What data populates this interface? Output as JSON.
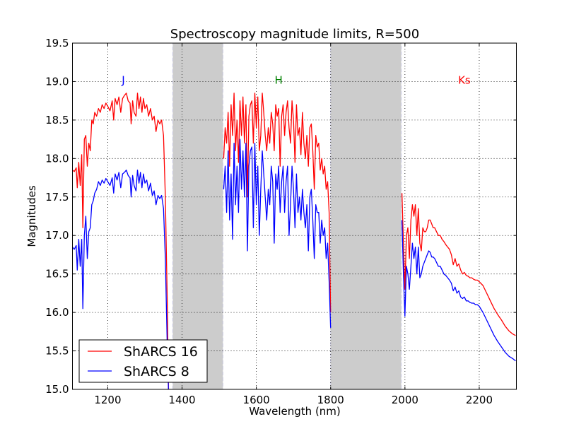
{
  "chart_data": {
    "type": "line",
    "title": "Spectroscopy magnitude limits, R=500",
    "xlabel": "Wavelength (nm)",
    "ylabel": "Magnitudes",
    "xlim": [
      1105,
      2300
    ],
    "ylim": [
      15.0,
      19.5
    ],
    "xticks": [
      1200,
      1400,
      1600,
      1800,
      2000,
      2200
    ],
    "xtick_labels": [
      "1200",
      "1400",
      "1600",
      "1800",
      "2000",
      "2200"
    ],
    "yticks": [
      15.0,
      15.5,
      16.0,
      16.5,
      17.0,
      17.5,
      18.0,
      18.5,
      19.0,
      19.5
    ],
    "ytick_labels": [
      "15.0",
      "15.5",
      "16.0",
      "16.5",
      "17.0",
      "17.5",
      "18.0",
      "18.5",
      "19.0",
      "19.5"
    ],
    "grid": true,
    "legend_position": "lower-left",
    "shaded_bands": [
      [
        1375,
        1510
      ],
      [
        1800,
        1990
      ]
    ],
    "band_color": "#cccccc",
    "annotations": [
      {
        "text": "J",
        "x": 1242,
        "y": 19.02,
        "color": "#0000ff"
      },
      {
        "text": "H",
        "x": 1660,
        "y": 19.02,
        "color": "#008000"
      },
      {
        "text": "Ks",
        "x": 2160,
        "y": 19.02,
        "color": "#ff0000"
      }
    ],
    "series": [
      {
        "name": "ShARCS 16",
        "color": "#ff0000",
        "segments": [
          {
            "x": [
              1105,
              1110,
              1115,
              1118,
              1122,
              1126,
              1130,
              1133,
              1137,
              1141,
              1145,
              1149,
              1153,
              1157,
              1161,
              1165,
              1170,
              1175,
              1180,
              1185,
              1190,
              1195,
              1200,
              1206,
              1212,
              1216,
              1220,
              1225,
              1230,
              1235,
              1240,
              1245,
              1250,
              1255,
              1260,
              1263,
              1267,
              1271,
              1276,
              1280,
              1284,
              1288,
              1292,
              1296,
              1300,
              1305,
              1310,
              1315,
              1320,
              1325,
              1330,
              1335,
              1340,
              1345,
              1350,
              1355,
              1360,
              1364
            ],
            "y": [
              17.85,
              17.83,
              17.88,
              17.62,
              17.95,
              17.65,
              18.05,
              17.1,
              18.25,
              18.3,
              17.9,
              18.2,
              18.1,
              18.5,
              18.45,
              18.6,
              18.55,
              18.65,
              18.6,
              18.7,
              18.65,
              18.72,
              18.68,
              18.62,
              18.75,
              18.5,
              18.78,
              18.7,
              18.8,
              18.6,
              18.78,
              18.82,
              18.85,
              18.75,
              18.72,
              18.45,
              18.75,
              18.6,
              18.55,
              18.85,
              18.65,
              18.8,
              18.6,
              18.78,
              18.65,
              18.7,
              18.55,
              18.65,
              18.5,
              18.55,
              18.35,
              18.5,
              18.45,
              18.5,
              18.3,
              17.5,
              16.2,
              14.9
            ]
          },
          {
            "x": [
              1512,
              1516,
              1520,
              1524,
              1528,
              1532,
              1536,
              1540,
              1544,
              1548,
              1552,
              1556,
              1560,
              1564,
              1568,
              1572,
              1576,
              1580,
              1584,
              1588,
              1592,
              1596,
              1600,
              1604,
              1608,
              1612,
              1616,
              1620,
              1624,
              1628,
              1632,
              1636,
              1640,
              1644,
              1648,
              1652,
              1656,
              1660,
              1664,
              1668,
              1672,
              1676,
              1680,
              1684,
              1688,
              1692,
              1696,
              1700,
              1704,
              1708,
              1712,
              1716,
              1720,
              1724,
              1728,
              1732,
              1736,
              1740,
              1744,
              1748,
              1752,
              1756,
              1760,
              1764,
              1768,
              1772,
              1776,
              1780,
              1784,
              1788,
              1792,
              1796,
              1800
            ],
            "y": [
              18.0,
              18.4,
              18.2,
              18.6,
              17.9,
              18.7,
              18.3,
              18.85,
              18.1,
              18.5,
              17.95,
              18.75,
              18.3,
              18.8,
              18.2,
              18.7,
              17.5,
              18.55,
              18.7,
              18.75,
              18.2,
              18.85,
              18.4,
              18.8,
              18.1,
              18.3,
              18.85,
              18.6,
              18.3,
              18.1,
              18.4,
              18.2,
              18.6,
              18.45,
              18.1,
              18.7,
              18.55,
              18.65,
              17.9,
              18.55,
              18.7,
              18.3,
              18.6,
              18.75,
              18.4,
              18.2,
              18.75,
              18.5,
              17.95,
              18.7,
              18.3,
              18.4,
              18.05,
              18.6,
              18.2,
              18.0,
              18.3,
              17.9,
              18.4,
              18.45,
              18.1,
              17.6,
              18.3,
              18.15,
              18.2,
              17.85,
              18.0,
              17.8,
              17.9,
              17.6,
              17.7,
              17.3,
              16.0
            ]
          },
          {
            "x": [
              1992,
              1996,
              2000,
              2004,
              2008,
              2012,
              2016,
              2020,
              2024,
              2028,
              2032,
              2036,
              2040,
              2044,
              2048,
              2052,
              2056,
              2060,
              2064,
              2068,
              2072,
              2076,
              2080,
              2085,
              2090,
              2095,
              2100,
              2105,
              2110,
              2115,
              2120,
              2125,
              2130,
              2135,
              2140,
              2145,
              2150,
              2155,
              2160,
              2165,
              2170,
              2175,
              2180,
              2185,
              2190,
              2195,
              2200,
              2210,
              2220,
              2230,
              2240,
              2250,
              2260,
              2270,
              2280,
              2290,
              2298
            ],
            "y": [
              17.55,
              16.9,
              16.3,
              17.0,
              17.1,
              16.7,
              17.2,
              17.4,
              17.25,
              17.4,
              17.0,
              17.35,
              16.9,
              16.8,
              17.1,
              17.05,
              17.05,
              17.1,
              17.2,
              17.2,
              17.15,
              17.1,
              17.1,
              17.05,
              17.0,
              17.0,
              16.95,
              16.92,
              16.88,
              16.85,
              16.82,
              16.75,
              16.62,
              16.7,
              16.6,
              16.63,
              16.55,
              16.5,
              16.52,
              16.48,
              16.47,
              16.45,
              16.45,
              16.43,
              16.42,
              16.42,
              16.4,
              16.35,
              16.25,
              16.15,
              16.05,
              15.97,
              15.9,
              15.82,
              15.76,
              15.72,
              15.7
            ]
          }
        ]
      },
      {
        "name": "ShARCS 8",
        "color": "#0000ff",
        "segments": [
          {
            "x": [
              1105,
              1110,
              1115,
              1118,
              1122,
              1126,
              1130,
              1133,
              1137,
              1141,
              1145,
              1149,
              1153,
              1157,
              1161,
              1165,
              1170,
              1175,
              1180,
              1185,
              1190,
              1195,
              1200,
              1206,
              1212,
              1216,
              1220,
              1225,
              1230,
              1235,
              1240,
              1245,
              1250,
              1255,
              1260,
              1263,
              1267,
              1271,
              1276,
              1280,
              1284,
              1288,
              1292,
              1296,
              1300,
              1305,
              1310,
              1315,
              1320,
              1325,
              1330,
              1335,
              1340,
              1345,
              1350,
              1355,
              1360,
              1364
            ],
            "y": [
              16.85,
              16.82,
              16.87,
              16.55,
              16.95,
              16.6,
              16.95,
              16.05,
              17.0,
              17.25,
              16.7,
              17.05,
              17.1,
              17.4,
              17.45,
              17.55,
              17.6,
              17.7,
              17.65,
              17.72,
              17.68,
              17.74,
              17.7,
              17.65,
              17.75,
              17.55,
              17.8,
              17.72,
              17.82,
              17.62,
              17.8,
              17.82,
              17.85,
              17.78,
              17.75,
              17.5,
              17.78,
              17.65,
              17.58,
              17.85,
              17.68,
              17.82,
              17.62,
              17.8,
              17.68,
              17.72,
              17.58,
              17.68,
              17.52,
              17.58,
              17.4,
              17.52,
              17.48,
              17.52,
              17.35,
              16.7,
              15.6,
              14.9
            ]
          },
          {
            "x": [
              1512,
              1516,
              1520,
              1524,
              1528,
              1532,
              1536,
              1540,
              1544,
              1548,
              1552,
              1556,
              1560,
              1564,
              1568,
              1572,
              1576,
              1580,
              1584,
              1588,
              1592,
              1596,
              1600,
              1604,
              1608,
              1612,
              1616,
              1620,
              1624,
              1628,
              1632,
              1636,
              1640,
              1644,
              1648,
              1652,
              1656,
              1660,
              1664,
              1668,
              1672,
              1676,
              1680,
              1684,
              1688,
              1692,
              1696,
              1700,
              1704,
              1708,
              1712,
              1716,
              1720,
              1724,
              1728,
              1732,
              1736,
              1740,
              1744,
              1748,
              1752,
              1756,
              1760,
              1764,
              1768,
              1772,
              1776,
              1780,
              1784,
              1788,
              1792,
              1796,
              1800
            ],
            "y": [
              17.6,
              17.9,
              17.3,
              18.1,
              17.2,
              17.8,
              16.95,
              18.2,
              17.4,
              17.9,
              17.3,
              18.25,
              17.6,
              18.1,
              17.5,
              18.2,
              16.8,
              17.9,
              18.1,
              18.15,
              17.1,
              18.2,
              17.4,
              17.9,
              17.0,
              17.6,
              18.1,
              17.8,
              17.5,
              17.2,
              17.6,
              17.4,
              17.9,
              17.7,
              16.9,
              17.8,
              17.6,
              17.9,
              17.3,
              17.7,
              17.9,
              17.3,
              17.7,
              17.9,
              17.0,
              17.4,
              17.9,
              17.6,
              17.1,
              17.8,
              17.3,
              17.5,
              17.2,
              17.6,
              17.3,
              17.1,
              17.4,
              16.8,
              17.5,
              17.6,
              17.2,
              16.7,
              17.4,
              17.3,
              17.3,
              16.9,
              17.2,
              17.0,
              17.1,
              16.7,
              16.9,
              16.4,
              15.8
            ]
          },
          {
            "x": [
              1992,
              1996,
              2000,
              2004,
              2008,
              2012,
              2016,
              2020,
              2024,
              2028,
              2032,
              2036,
              2040,
              2044,
              2048,
              2052,
              2056,
              2060,
              2064,
              2068,
              2072,
              2076,
              2080,
              2085,
              2090,
              2095,
              2100,
              2105,
              2110,
              2115,
              2120,
              2125,
              2130,
              2135,
              2140,
              2145,
              2150,
              2155,
              2160,
              2165,
              2170,
              2175,
              2180,
              2185,
              2190,
              2195,
              2200,
              2210,
              2220,
              2230,
              2240,
              2250,
              2260,
              2270,
              2280,
              2290,
              2298
            ],
            "y": [
              17.2,
              16.5,
              15.95,
              16.6,
              16.5,
              16.3,
              16.6,
              16.9,
              16.7,
              16.85,
              16.5,
              16.85,
              16.45,
              16.5,
              16.6,
              16.65,
              16.7,
              16.75,
              16.8,
              16.78,
              16.72,
              16.72,
              16.7,
              16.65,
              16.6,
              16.6,
              16.55,
              16.5,
              16.48,
              16.45,
              16.42,
              16.38,
              16.28,
              16.33,
              16.25,
              16.28,
              16.2,
              16.18,
              16.2,
              16.15,
              16.15,
              16.13,
              16.12,
              16.12,
              16.1,
              16.1,
              16.08,
              16.0,
              15.9,
              15.8,
              15.7,
              15.62,
              15.55,
              15.48,
              15.43,
              15.4,
              15.37
            ]
          }
        ]
      }
    ]
  }
}
